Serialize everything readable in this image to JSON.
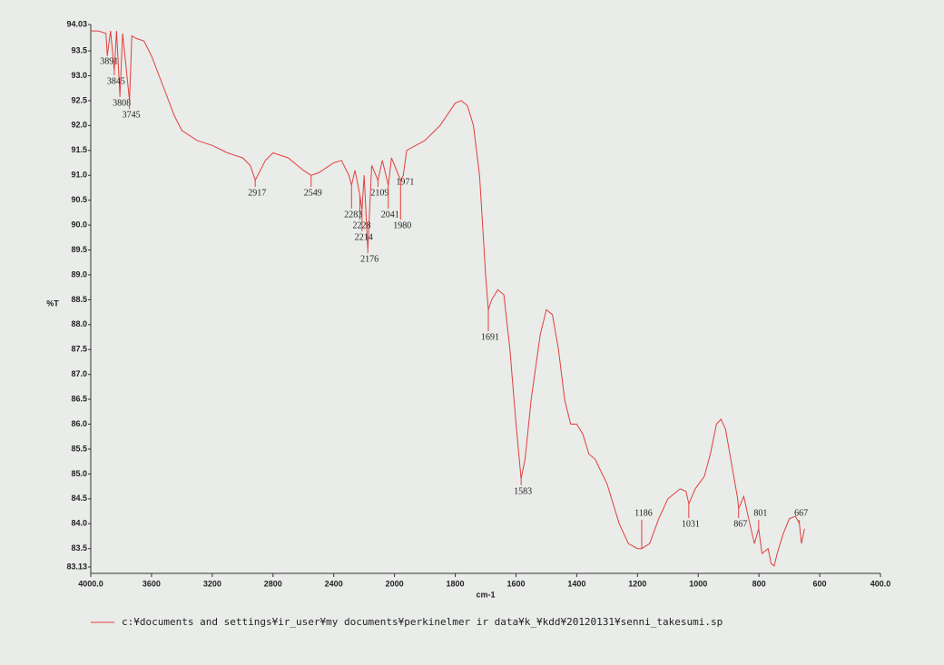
{
  "chart_data": {
    "type": "line",
    "x_label": "cm-1",
    "y_label": "%T",
    "xlim": [
      4000,
      400
    ],
    "ylim": [
      83.13,
      94.03
    ],
    "xticks": [
      {
        "value": 4000,
        "label": "4000.0"
      },
      3600,
      3200,
      2800,
      2400,
      2000,
      1800,
      1600,
      1400,
      1200,
      1000,
      800,
      600,
      {
        "value": 400,
        "label": "400.0"
      }
    ],
    "yticks": [
      83.13,
      83.5,
      {
        "value": 84,
        "label": "84.0"
      },
      84.5,
      {
        "value": 85,
        "label": "85.0"
      },
      85.5,
      {
        "value": 86,
        "label": "86.0"
      },
      86.5,
      {
        "value": 87,
        "label": "87.0"
      },
      87.5,
      {
        "value": 88,
        "label": "88.0"
      },
      88.5,
      {
        "value": 89,
        "label": "89.0"
      },
      89.5,
      {
        "value": 90,
        "label": "90.0"
      },
      90.5,
      {
        "value": 91,
        "label": "91.0"
      },
      91.5,
      {
        "value": 92,
        "label": "92.0"
      },
      92.5,
      {
        "value": 93,
        "label": "93.0"
      },
      93.5,
      94.03
    ],
    "x": [
      4000,
      3950,
      3900,
      3891,
      3870,
      3845,
      3830,
      3808,
      3790,
      3745,
      3730,
      3700,
      3650,
      3600,
      3550,
      3500,
      3450,
      3400,
      3350,
      3300,
      3200,
      3100,
      3000,
      2950,
      2917,
      2850,
      2800,
      2700,
      2600,
      2549,
      2500,
      2400,
      2350,
      2300,
      2283,
      2260,
      2228,
      2214,
      2200,
      2176,
      2150,
      2109,
      2080,
      2041,
      2020,
      1980,
      1971,
      1960,
      1900,
      1850,
      1800,
      1780,
      1760,
      1740,
      1720,
      1710,
      1700,
      1691,
      1680,
      1660,
      1640,
      1620,
      1600,
      1583,
      1570,
      1550,
      1520,
      1500,
      1480,
      1460,
      1440,
      1420,
      1400,
      1380,
      1360,
      1340,
      1300,
      1260,
      1230,
      1200,
      1186,
      1160,
      1130,
      1100,
      1060,
      1040,
      1031,
      1010,
      980,
      960,
      940,
      925,
      910,
      890,
      870,
      867,
      850,
      830,
      815,
      801,
      790,
      770,
      760,
      750,
      740,
      720,
      700,
      680,
      667,
      660,
      650
    ],
    "series": [
      {
        "name": "c:¥documents and settings¥ir_user¥my documents¥perkinelmer ir data¥k_¥kdd¥20120131¥senni_takesumi.sp",
        "color": "#e0403f",
        "values": [
          93.9,
          93.9,
          93.85,
          93.4,
          93.9,
          93.1,
          93.9,
          92.6,
          93.85,
          92.5,
          93.8,
          93.75,
          93.7,
          93.4,
          93.0,
          92.6,
          92.2,
          91.9,
          91.8,
          91.7,
          91.6,
          91.45,
          91.35,
          91.2,
          90.9,
          91.3,
          91.45,
          91.35,
          91.1,
          91.0,
          91.05,
          91.25,
          91.3,
          91.0,
          90.8,
          91.1,
          90.6,
          90.3,
          91.0,
          89.5,
          91.2,
          90.9,
          91.3,
          90.8,
          91.35,
          90.9,
          91.0,
          91.5,
          91.7,
          92.0,
          92.45,
          92.5,
          92.4,
          92.0,
          91.0,
          90.0,
          89.0,
          88.3,
          88.5,
          88.7,
          88.6,
          87.5,
          86.0,
          84.9,
          85.3,
          86.5,
          87.8,
          88.3,
          88.2,
          87.5,
          86.5,
          86.0,
          86.0,
          85.8,
          85.4,
          85.3,
          84.8,
          84.0,
          83.6,
          83.5,
          83.5,
          83.6,
          84.1,
          84.5,
          84.7,
          84.65,
          84.4,
          84.7,
          84.95,
          85.4,
          86.0,
          86.1,
          85.9,
          85.2,
          84.5,
          84.3,
          84.55,
          84.0,
          83.6,
          83.9,
          83.4,
          83.5,
          83.2,
          83.15,
          83.4,
          83.8,
          84.1,
          84.15,
          84.0,
          83.6,
          83.9
        ]
      }
    ],
    "peaks": [
      {
        "x": 3891,
        "y": 93.4
      },
      {
        "x": 3845,
        "y": 93.1
      },
      {
        "x": 3808,
        "y": 92.6
      },
      {
        "x": 3745,
        "y": 92.5
      },
      {
        "x": 2917,
        "y": 90.9
      },
      {
        "x": 2549,
        "y": 91.0
      },
      {
        "x": 2283,
        "y": 90.8
      },
      {
        "x": 2228,
        "y": 90.6
      },
      {
        "x": 2214,
        "y": 90.3
      },
      {
        "x": 2176,
        "y": 89.5
      },
      {
        "x": 2109,
        "y": 90.9
      },
      {
        "x": 2041,
        "y": 90.8
      },
      {
        "x": 1980,
        "y": 90.9
      },
      {
        "x": 1971,
        "y": 91.0
      },
      {
        "x": 1691,
        "y": 88.3
      },
      {
        "x": 1583,
        "y": 84.9
      },
      {
        "x": 1186,
        "y": 83.5
      },
      {
        "x": 1031,
        "y": 84.4
      },
      {
        "x": 867,
        "y": 84.3
      },
      {
        "x": 801,
        "y": 83.9
      },
      {
        "x": 667,
        "y": 84.0
      }
    ]
  }
}
